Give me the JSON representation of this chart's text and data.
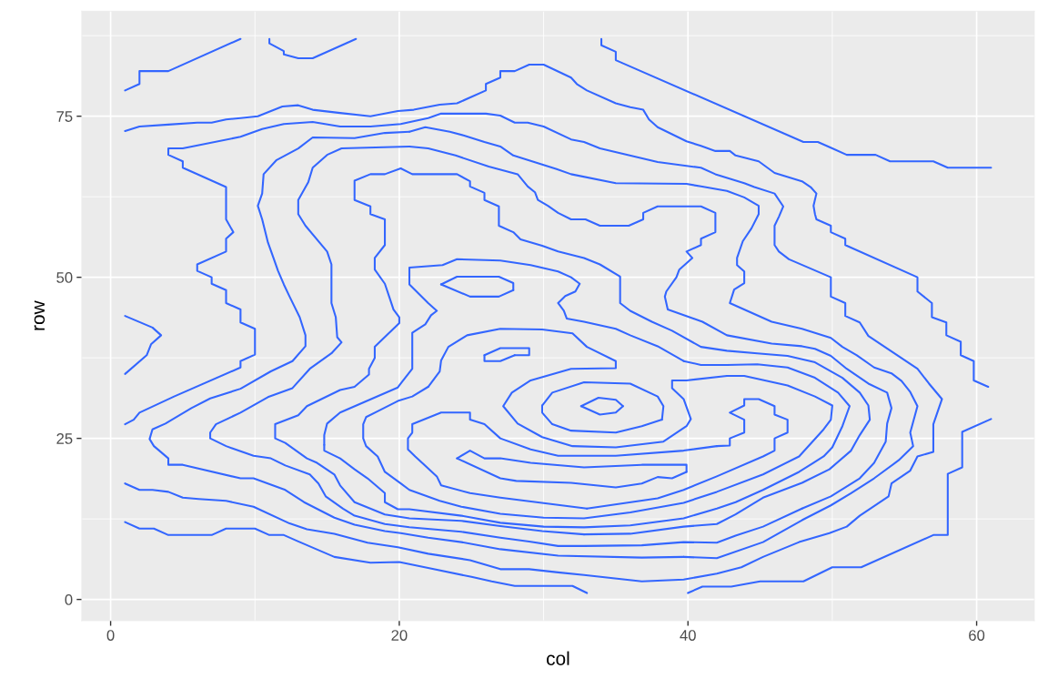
{
  "chart_data": {
    "type": "line",
    "xlabel": "col",
    "ylabel": "row",
    "xlim": [
      -2,
      64
    ],
    "ylim": [
      -3.3,
      91.3
    ],
    "xticks": [
      0,
      20,
      40,
      60
    ],
    "yticks": [
      0,
      25,
      50,
      75
    ],
    "grid": true,
    "series": [
      {
        "color": "#3366ff",
        "x": [
          1,
          2,
          2,
          4,
          9
        ],
        "values": [
          79,
          80,
          82,
          82,
          87
        ]
      },
      {
        "color": "#3366ff",
        "x": [
          11,
          11,
          12,
          12,
          13,
          14,
          17
        ],
        "values": [
          87,
          86.3,
          85.1,
          84.6,
          84,
          84,
          87
        ]
      },
      {
        "color": "#3366ff",
        "x": [
          34,
          34,
          35,
          35,
          48,
          49,
          50,
          51,
          53,
          54,
          57,
          58,
          61
        ],
        "values": [
          87,
          86,
          85,
          83.7,
          71,
          71,
          70,
          69,
          69,
          68,
          68,
          67,
          67
        ]
      },
      {
        "color": "#3366ff",
        "x": [
          1,
          2.9,
          3.5,
          2.8,
          2.5,
          1
        ],
        "values": [
          44,
          42.2,
          41,
          39.6,
          37.9,
          35
        ]
      },
      {
        "color": "#3366ff",
        "x": [
          61,
          59,
          59,
          58,
          58,
          57,
          52,
          50,
          48,
          45,
          43,
          41,
          40
        ],
        "values": [
          28,
          26,
          20.5,
          19.5,
          10,
          10,
          5,
          5,
          2.8,
          2.8,
          2,
          2,
          1
        ]
      },
      {
        "color": "#3366ff",
        "x": [
          1,
          2,
          3,
          4,
          7,
          8,
          10,
          11,
          12,
          13,
          15.5,
          18,
          20,
          22,
          25,
          26.4,
          28,
          32,
          33
        ],
        "values": [
          12,
          11,
          11,
          10,
          10,
          11,
          11,
          10,
          10,
          9,
          6.6,
          5.7,
          5.8,
          4.9,
          3.5,
          2.8,
          2.1,
          2.1,
          1
        ]
      },
      {
        "color": "#3366ff",
        "x": [
          1,
          2,
          4,
          6,
          7,
          8,
          9,
          10.2,
          11.9,
          13,
          14,
          15.9,
          18,
          19.9,
          21,
          22.8,
          24,
          26,
          26,
          27,
          27,
          28,
          29,
          30,
          31.9,
          32.3,
          33,
          35,
          36,
          36.9,
          37.3,
          37.9,
          39.9,
          40.9,
          41.9,
          42.9,
          43.3,
          44.9,
          46,
          47.9,
          48.5,
          48.9,
          48.7,
          48.8,
          48.9,
          49.9,
          49.9,
          50.9,
          50.9,
          55.9,
          55.9,
          56.9,
          56.9,
          57.9,
          57.9,
          58.9,
          58.9,
          59.8,
          59.8,
          60.8
        ],
        "values": [
          72.7,
          73.4,
          73.7,
          74,
          74,
          74.5,
          74.7,
          75,
          76.5,
          76.7,
          76,
          75.5,
          75,
          75.8,
          76,
          76.8,
          77,
          79,
          80,
          81,
          82,
          82,
          83,
          83,
          81,
          80,
          79,
          77,
          76.4,
          76,
          74.5,
          73.3,
          71.1,
          70.4,
          69.6,
          69.6,
          68.9,
          68,
          66.2,
          64.9,
          64,
          63,
          61.1,
          59.8,
          59,
          58,
          57,
          56,
          55,
          50,
          47.8,
          46,
          43.8,
          43,
          41,
          40,
          37.9,
          37,
          34,
          33
        ]
      },
      {
        "color": "#3366ff",
        "x": [
          1,
          1.6,
          2,
          4.4,
          9,
          9,
          10,
          10,
          9,
          9,
          8,
          8,
          7,
          7,
          6,
          6,
          8,
          8,
          8.5,
          8,
          8,
          5,
          5,
          4,
          4,
          5,
          9,
          10.5,
          12,
          14,
          15.9,
          18,
          20.1,
          22,
          22.9,
          26,
          27,
          28,
          28.9,
          30,
          31.9,
          32.8,
          33.9,
          37.9,
          40.9,
          41.9,
          43.9,
          44.6,
          46,
          46.6,
          46.3,
          46,
          46,
          46.3,
          47,
          49.9,
          49.9,
          50.9,
          50.9,
          51.9,
          52.5,
          55.9,
          56.7,
          57.6,
          57,
          57,
          55.9,
          55.4,
          54.1,
          53.9,
          51.9,
          51,
          49.8,
          47.7,
          45.2,
          43.7,
          42,
          39.7,
          36.8,
          32.8,
          31,
          29,
          27,
          24.9,
          22,
          19.9,
          17.8,
          15.5,
          13.6,
          12.4,
          9.9,
          8,
          6.1,
          5,
          4,
          2.9,
          2,
          1
        ],
        "values": [
          27.2,
          27.9,
          29,
          31.5,
          36,
          37,
          38,
          42,
          43,
          45,
          46,
          48,
          49,
          50,
          51,
          52,
          54,
          56,
          57,
          59,
          64,
          67,
          68,
          69,
          70,
          70,
          71.8,
          73,
          73.8,
          74.1,
          73.4,
          73.4,
          73.8,
          74.7,
          75.4,
          75.4,
          75.1,
          74,
          74,
          73.4,
          71.4,
          71,
          70,
          67.9,
          67,
          66,
          64.6,
          64,
          63,
          61,
          59.4,
          58,
          55,
          54,
          52.8,
          50,
          47,
          46,
          44,
          43,
          40.9,
          35.8,
          33.5,
          31.1,
          27.2,
          22.9,
          22.2,
          20,
          18,
          16,
          13,
          11.3,
          10.3,
          8.9,
          6.6,
          5,
          4,
          3.1,
          2.8,
          3.8,
          4.2,
          4.7,
          4.7,
          6.1,
          7.1,
          8.1,
          8.8,
          10.2,
          10.9,
          11.8,
          14.4,
          15.3,
          15.6,
          15.8,
          16.7,
          17,
          17,
          18
        ]
      },
      {
        "color": "#3366ff",
        "x": [
          20.7,
          21.8,
          23.5,
          24.5,
          25.9,
          27,
          27.9,
          28.9,
          30.9,
          31.9,
          35,
          39.9,
          40.9,
          42.7,
          43.9,
          44.9,
          44.9,
          44.4,
          43.8,
          43.4,
          43.4,
          43.9,
          43.9,
          43.2,
          42.9,
          45.8,
          47.9,
          49.9,
          50.7,
          51.7,
          52.9,
          54.1,
          54.8,
          55.4,
          55.9,
          55.4,
          55.6,
          54.6,
          52.9,
          51.3,
          49.9,
          47.9,
          45.2,
          42,
          39.7,
          36.8,
          31,
          27,
          24.3,
          22,
          20.1,
          19,
          16.9,
          15.5,
          13.4,
          12.1,
          9.9,
          9,
          5,
          4,
          4,
          3,
          2.7,
          2.9,
          3.8,
          5.6,
          6.9,
          9,
          11.1,
          12.6,
          13.5,
          13.5,
          13.1,
          12.4,
          12,
          11.6,
          11.3,
          10.9,
          10.5,
          10.2,
          10.5,
          10.6,
          11.5,
          13,
          14,
          16.9,
          19,
          20.7
        ],
        "values": [
          72.6,
          73.3,
          72.6,
          72,
          71,
          70.3,
          68.9,
          68.2,
          66.8,
          66,
          64.6,
          64.5,
          64.1,
          63.4,
          62.4,
          61.1,
          59.8,
          57.6,
          55.6,
          53,
          51.9,
          50.9,
          49.1,
          48.1,
          46,
          43.1,
          42,
          40.6,
          39.2,
          37.9,
          36,
          35.1,
          33.9,
          32.2,
          30,
          25.9,
          23.8,
          21.6,
          18.8,
          16.5,
          14.6,
          12.3,
          8.9,
          6.4,
          6.6,
          6.5,
          6.8,
          7.8,
          8.9,
          9.6,
          10.3,
          10.6,
          11.6,
          12.7,
          15.1,
          17,
          18.8,
          18.8,
          20.9,
          20.9,
          21.9,
          23.8,
          24.9,
          26.4,
          27.3,
          29.7,
          31.2,
          32.7,
          35.4,
          37,
          39.3,
          41,
          43.8,
          47,
          48.9,
          51,
          52.9,
          55.4,
          59,
          61.1,
          63,
          66,
          68.2,
          70,
          71.7,
          71.6,
          72.4,
          72.6
        ]
      },
      {
        "color": "#3366ff",
        "x": [
          20.7,
          22,
          23.9,
          26.2,
          28.2,
          28.9,
          29.4,
          29.6,
          30.3,
          31,
          31.9,
          32.9,
          33.9,
          35.9,
          36.9,
          36.9,
          37.9,
          40.9,
          41.9,
          41.9,
          40.9,
          40.9,
          39.9,
          40.3,
          39.4,
          39.2,
          38.5,
          38.4,
          38.6,
          41,
          42.7,
          45.8,
          47.9,
          48.8,
          49.9,
          51,
          52.5,
          53.8,
          54.1,
          53.8,
          53.7,
          52.9,
          51.9,
          49.9,
          47.9,
          45.2,
          43.3,
          42,
          39.7,
          36.8,
          32.8,
          31,
          29,
          27,
          24.3,
          20.7,
          19,
          16.9,
          16.1,
          14.9,
          14.4,
          13.8,
          12.1,
          11.1,
          9.9,
          8,
          6.9,
          6.9,
          7.3,
          9,
          10.9,
          12.6,
          13.8,
          15.3,
          16,
          15.7,
          15.6,
          15.3,
          15.3,
          15,
          13.5,
          13,
          13,
          13.7,
          14,
          15,
          16,
          20.7
        ],
        "values": [
          70.3,
          70,
          68.9,
          67.2,
          66,
          64.1,
          63.2,
          62,
          61.1,
          60,
          59,
          59,
          58,
          58,
          59,
          60,
          61,
          61,
          60,
          57,
          56,
          55,
          54,
          53,
          51.2,
          50,
          47.8,
          47,
          45,
          43.1,
          41,
          39.7,
          39.3,
          38.9,
          37.8,
          35.8,
          33.5,
          32.1,
          29.7,
          27.3,
          24.5,
          21.2,
          18.8,
          16,
          14.1,
          11.3,
          9.9,
          8.8,
          8.9,
          8.4,
          8.3,
          8.3,
          9,
          9.6,
          10.5,
          11.2,
          11.7,
          13,
          14.1,
          16,
          18,
          19.4,
          20.8,
          21.9,
          22.3,
          23.8,
          25,
          25.9,
          27.2,
          29,
          31.4,
          32.8,
          35.8,
          38.2,
          39.9,
          40.7,
          43.8,
          46,
          52,
          54,
          58,
          59.8,
          62,
          64.8,
          67,
          69,
          70,
          70.3
        ]
      },
      {
        "color": "#3366ff",
        "x": [
          20.1,
          20.9,
          24,
          24.9,
          24.9,
          25.9,
          25.9,
          26.9,
          26.9,
          27.9,
          28.4,
          29.9,
          31,
          32.8,
          33.9,
          35.3,
          35.3,
          36,
          37.5,
          38.9,
          40.9,
          42.7,
          44.8,
          46.9,
          48.8,
          50.7,
          51.9,
          52.5,
          52.6,
          51.9,
          51.3,
          49.8,
          47.9,
          45.2,
          43.3,
          42,
          39.7,
          36,
          32.8,
          29.9,
          27,
          24.3,
          20.7,
          19,
          16.9,
          15.9,
          15.5,
          14.3,
          13.6,
          12.1,
          11.4,
          11.4,
          13,
          13.6,
          15.9,
          16.9,
          17.9,
          17.9,
          18.3,
          18.3,
          20,
          20,
          19.6,
          19.3,
          19,
          18.3,
          18.3,
          19,
          19,
          18,
          18,
          16.9,
          16.9,
          18,
          19,
          20.1
        ],
        "values": [
          66.9,
          66,
          66,
          64.9,
          64.1,
          63.1,
          62,
          61,
          58,
          57,
          55.9,
          54.9,
          54,
          53,
          52,
          50.1,
          46,
          44.8,
          43.1,
          41.7,
          39.2,
          38.6,
          38.2,
          37.8,
          36.8,
          34.4,
          32.1,
          30.1,
          27.9,
          25.5,
          23.1,
          20.2,
          18.1,
          15.8,
          13.2,
          11.7,
          11.3,
          10.2,
          10.1,
          10.6,
          11.4,
          12.2,
          12.6,
          13.2,
          15.1,
          17.7,
          19.4,
          21.2,
          21.9,
          24.3,
          25,
          27.2,
          28.6,
          30,
          32.5,
          33,
          34.9,
          35.8,
          37.5,
          39.2,
          42.9,
          43.8,
          45,
          47,
          49,
          51.2,
          53,
          55,
          59,
          59.8,
          61,
          62,
          65,
          66,
          66,
          66.9
        ]
      },
      {
        "color": "#3366ff",
        "x": [
          14.8,
          14.8,
          15,
          15.9,
          19.9,
          20.1,
          20.9,
          20.9,
          21.8,
          22.2,
          22.6,
          22,
          20.7,
          20.7,
          23,
          24,
          27,
          29.1,
          31,
          31.9,
          32.5,
          32.2,
          31.5,
          31,
          31.4,
          31.6,
          32.8,
          35,
          36,
          37.9,
          39.7,
          40.9,
          42.7,
          44.8,
          46.9,
          48.8,
          50.4,
          51.2,
          50.7,
          50,
          49.4,
          47.7,
          45.2,
          43.3,
          42,
          39.7,
          36,
          32.8,
          30,
          27,
          24.3,
          20.7,
          19.9,
          19,
          19,
          17.8,
          16.9,
          15.9,
          14.8,
          14.8
        ],
        "values": [
          24,
          25.5,
          27.3,
          29,
          32.9,
          33.5,
          35.8,
          41.4,
          42.7,
          44.1,
          44.8,
          46,
          48.9,
          51.5,
          51.9,
          52.8,
          52.6,
          51.9,
          50.9,
          50,
          49,
          47.8,
          47.1,
          46,
          44.8,
          43.6,
          43.1,
          42,
          41,
          39.3,
          37,
          36.4,
          36.4,
          36.5,
          36,
          34.4,
          32.1,
          30,
          26.9,
          23.6,
          22.2,
          19.8,
          17,
          15.1,
          14.1,
          12.6,
          11.5,
          11.2,
          11.3,
          11.9,
          13,
          14,
          14,
          15.1,
          16.5,
          18.8,
          20.2,
          21.9,
          23.1,
          24
        ]
      },
      {
        "color": "#3366ff",
        "x": [
          42.7,
          43.9,
          46.9,
          48.8,
          50,
          49.9,
          49.4,
          47.7,
          45.2,
          42,
          39.7,
          36,
          32.8,
          30,
          27,
          24.3,
          22.8,
          20.7,
          20.1,
          19,
          18.5,
          17.7,
          17.5,
          17.5,
          17.7,
          18.5,
          19.9,
          20.9,
          22,
          22.8,
          22.9,
          23.4,
          24.7,
          27,
          29.9,
          32,
          33,
          35,
          35,
          31.9,
          29.1,
          27.8,
          27.2,
          28.2,
          29.9,
          32,
          35,
          38.3,
          39.1,
          39.9,
          40.2,
          39.7,
          38.9,
          38.9,
          39.9,
          42.7
        ],
        "values": [
          34.7,
          34.7,
          33.2,
          31.5,
          30.1,
          27.9,
          26.4,
          22.2,
          19.4,
          16.7,
          15,
          13.5,
          12.6,
          12.7,
          13.3,
          14.4,
          15.3,
          17,
          18,
          19.8,
          22.2,
          23.8,
          25,
          27.2,
          28.3,
          29.2,
          30.8,
          31.5,
          33,
          35.4,
          37.1,
          39.2,
          41,
          42,
          41.9,
          41.3,
          39.2,
          37,
          35.9,
          35.8,
          34,
          32.1,
          30,
          27.3,
          25.2,
          23.8,
          23.6,
          24.5,
          25.7,
          26.9,
          28,
          31.1,
          32.8,
          34,
          34,
          34.7
        ]
      },
      {
        "color": "#3366ff",
        "x": [
          42,
          42.9,
          42.9,
          43.9,
          43.9,
          42.9,
          43.9,
          43.9,
          44.9,
          46,
          46,
          46.9,
          46.9,
          46,
          46,
          45.2,
          42,
          39.7,
          37.9,
          33,
          27,
          24.9,
          22.9,
          22.6,
          21.1,
          20.6,
          20.6,
          20.9,
          20.9,
          22.9,
          24.9,
          24.9,
          25.9,
          27,
          29.1,
          31,
          35,
          39.7,
          42
        ],
        "values": [
          23.8,
          23.9,
          25,
          25.9,
          27.9,
          29,
          30.1,
          31.1,
          31.1,
          30,
          28.7,
          27.9,
          25.9,
          25,
          23.1,
          22.2,
          19.1,
          17,
          15.7,
          14.1,
          15.8,
          16.5,
          17.7,
          19.1,
          22.2,
          23.3,
          25,
          25.9,
          27.2,
          29,
          29,
          27.9,
          27.2,
          25,
          23.3,
          22.3,
          22.3,
          23.1,
          23.8
        ]
      },
      {
        "color": "#3366ff",
        "x": [
          24,
          24.9,
          25.9,
          27,
          29.1,
          32.8,
          36.8,
          39.9,
          39.9,
          38.9,
          37.9,
          36.8,
          35,
          31.9,
          28.1,
          27,
          24
        ],
        "values": [
          21.9,
          23.1,
          21.9,
          21.9,
          21.2,
          20.5,
          20.9,
          20.9,
          19.8,
          18.8,
          19,
          18,
          17.4,
          18.1,
          18.4,
          18.8,
          21.9
        ]
      },
      {
        "color": "#3366ff",
        "x": [
          29.9,
          30.6,
          32.8,
          36,
          37.9,
          38.3,
          38.2,
          36.8,
          35,
          31.9,
          30.6,
          29.9,
          29.9
        ],
        "values": [
          30.1,
          32.1,
          33.7,
          33.5,
          31.5,
          30,
          27.9,
          26.9,
          25.9,
          26.2,
          27.2,
          29,
          30.1
        ]
      },
      {
        "color": "#3366ff",
        "x": [
          32.6,
          33.8,
          35,
          35.5,
          35,
          33.9,
          32.6
        ],
        "values": [
          30,
          31.3,
          31,
          30,
          29,
          28.7,
          30
        ]
      },
      {
        "color": "#3366ff",
        "x": [
          22.9,
          24,
          26.9,
          27.9,
          27.9,
          26.9,
          24.9,
          22.9
        ],
        "values": [
          48.9,
          50.1,
          50.1,
          49.1,
          48,
          47,
          47,
          48.9
        ]
      },
      {
        "color": "#3366ff",
        "x": [
          25.9,
          27,
          29,
          29,
          28,
          27,
          25.9,
          25.9
        ],
        "values": [
          37.9,
          39,
          39,
          37.9,
          37.9,
          37,
          37,
          37.9
        ]
      }
    ]
  }
}
